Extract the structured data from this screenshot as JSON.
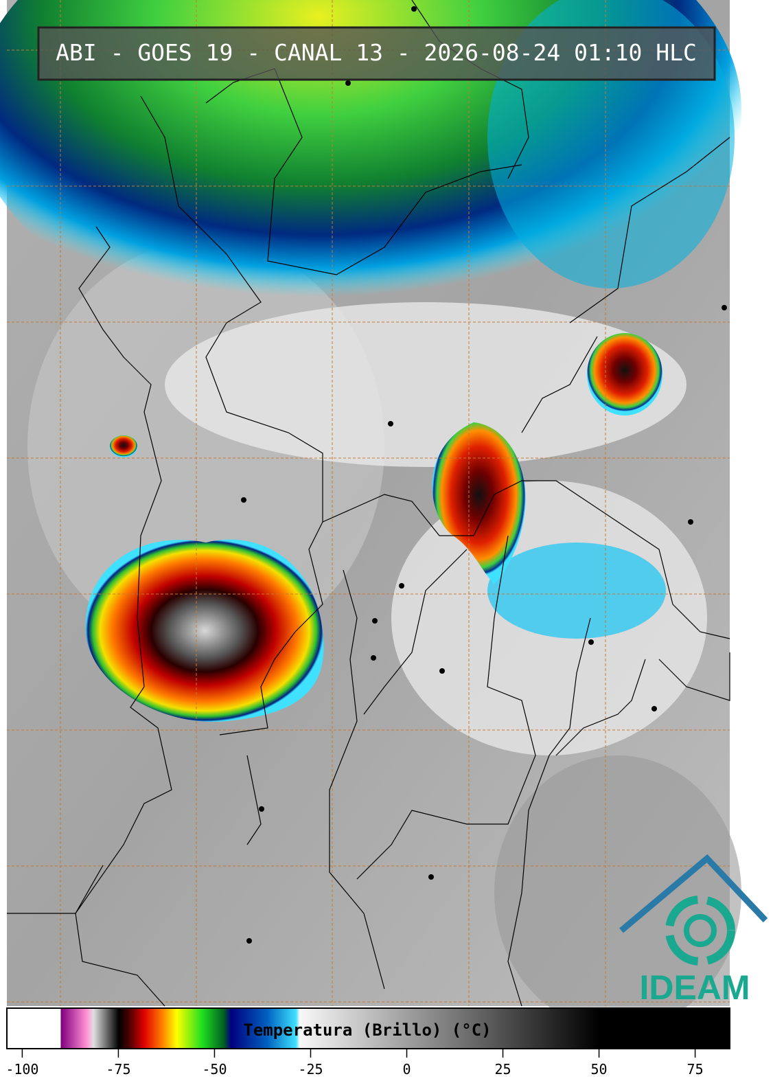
{
  "header": {
    "title": "ABI - GOES 19 - CANAL 13 - 2026-08-24 01:10 HLC"
  },
  "colorbar": {
    "label": "Temperatura (Brillo) (°C)",
    "xlim": [
      -104,
      84
    ],
    "xticks": [
      -100,
      -75,
      -50,
      -25,
      0,
      25,
      50,
      75
    ]
  },
  "logo": {
    "text": "IDEAM"
  }
}
